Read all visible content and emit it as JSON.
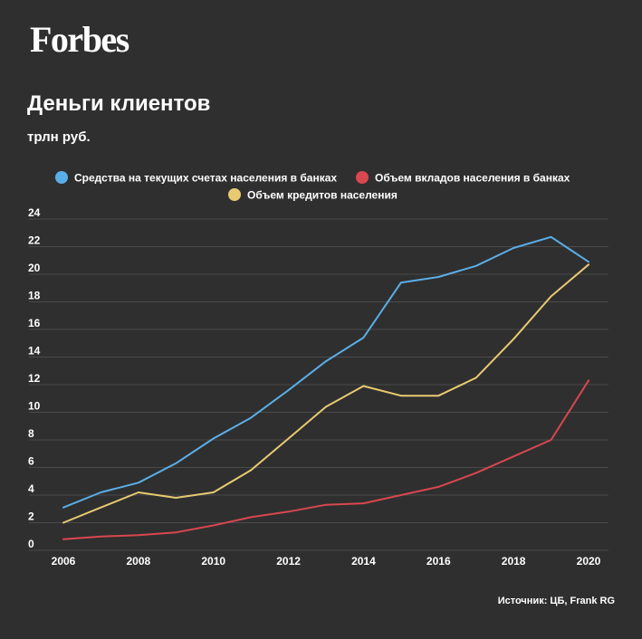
{
  "brand": {
    "logo_text": "Forbes"
  },
  "header": {
    "title": "Деньги клиентов",
    "subtitle": "трлн руб."
  },
  "footer": {
    "source": "Источник: ЦБ, Frank RG"
  },
  "colors": {
    "background": "#2f2f2f",
    "grid": "#4a4a4a",
    "text": "#ffffff"
  },
  "chart_data": {
    "type": "line",
    "title": "Деньги клиентов",
    "subtitle": "трлн руб.",
    "x": [
      2006,
      2007,
      2008,
      2009,
      2010,
      2011,
      2012,
      2013,
      2014,
      2015,
      2016,
      2017,
      2018,
      2019,
      2020
    ],
    "x_ticks": [
      2006,
      2008,
      2010,
      2012,
      2014,
      2016,
      2018,
      2020
    ],
    "y_ticks": [
      0,
      2,
      4,
      6,
      8,
      10,
      12,
      14,
      16,
      18,
      20,
      22,
      24
    ],
    "ylim": [
      0,
      24
    ],
    "xlim": [
      2006,
      2020
    ],
    "grid": "horizontal",
    "legend_position": "top",
    "series": [
      {
        "name": "Средства на текущих счетах населения в банках",
        "color": "#5aaee8",
        "values": [
          3.1,
          4.2,
          4.9,
          6.3,
          8.1,
          9.6,
          11.6,
          13.7,
          15.4,
          19.4,
          19.8,
          20.6,
          21.9,
          22.7,
          20.9
        ]
      },
      {
        "name": "Объем вкладов населения в банках",
        "color": "#d9474f",
        "values": [
          0.8,
          1.0,
          1.1,
          1.3,
          1.8,
          2.4,
          2.8,
          3.3,
          3.4,
          4.0,
          4.6,
          5.6,
          6.8,
          8.0,
          12.3
        ]
      },
      {
        "name": "Объем кредитов населения",
        "color": "#e9ca72",
        "values": [
          2.0,
          3.1,
          4.2,
          3.8,
          4.2,
          5.8,
          8.1,
          10.4,
          11.9,
          11.2,
          11.2,
          12.5,
          15.3,
          18.4,
          20.7
        ]
      }
    ]
  }
}
